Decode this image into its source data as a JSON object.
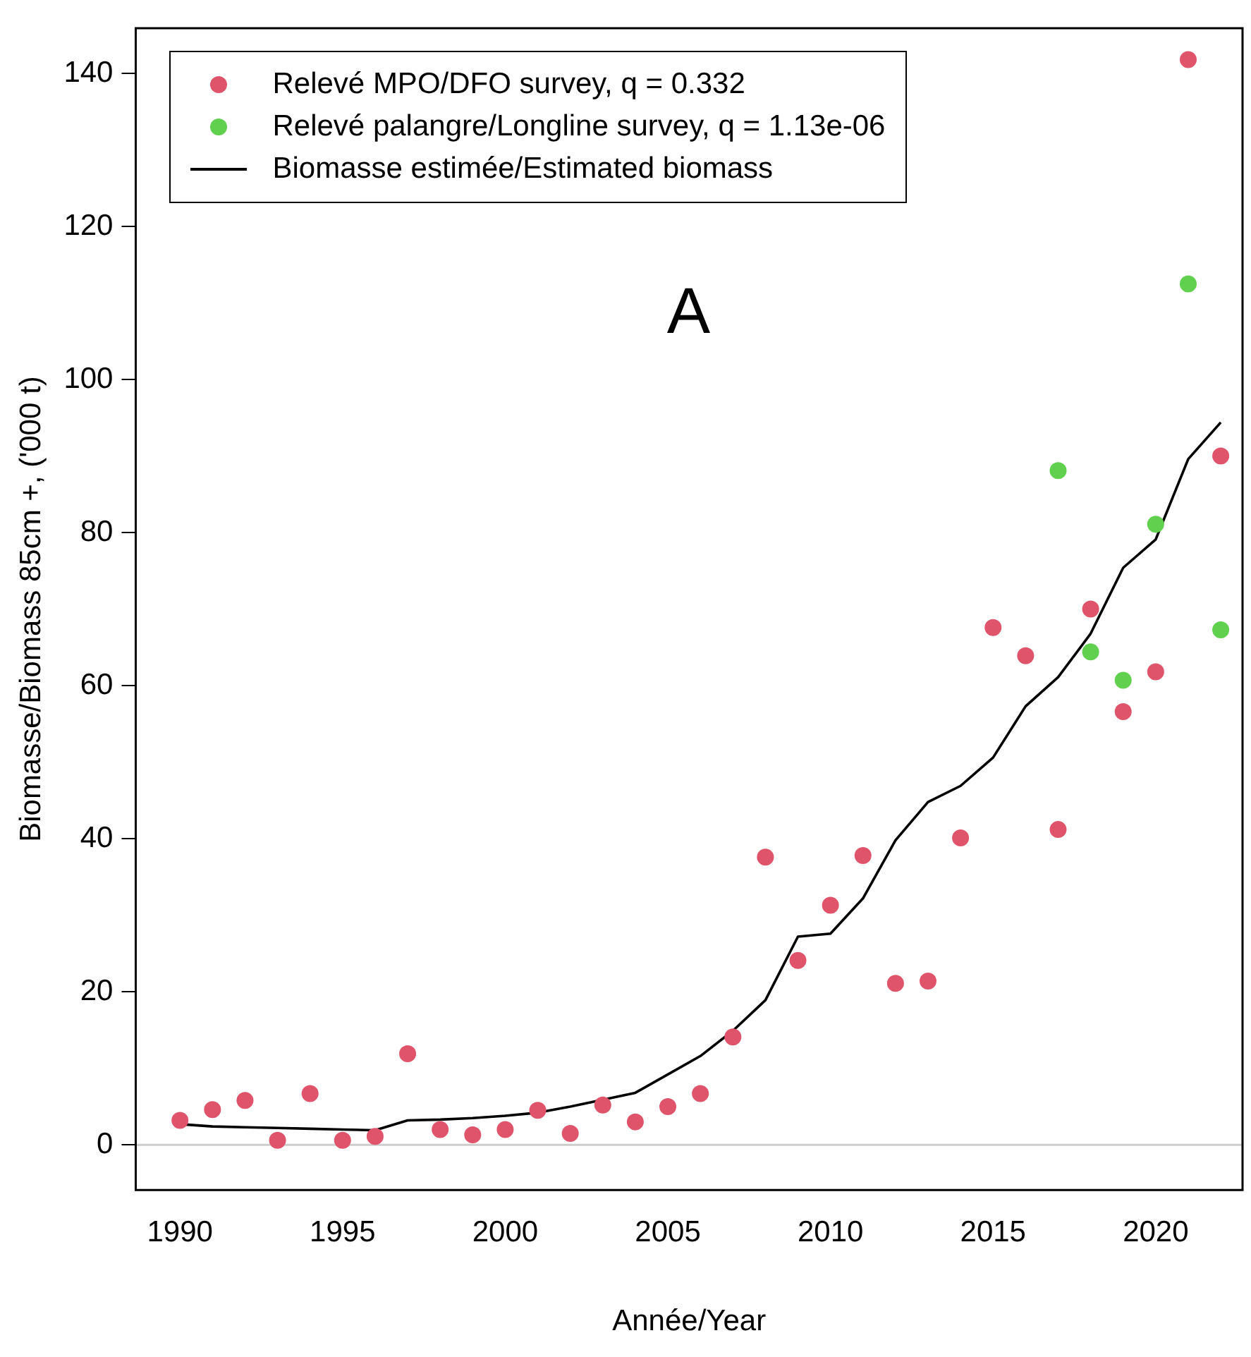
{
  "chart_data": {
    "type": "scatter",
    "xlabel": "Année/Year",
    "ylabel": "Biomasse/Biomass 85cm +, ('000 t)",
    "xlim": [
      1988.64,
      2022.67
    ],
    "xticks": [
      1990,
      1995,
      2000,
      2005,
      2010,
      2015,
      2020
    ],
    "ylim": [
      -5.9,
      145.9
    ],
    "yticks": [
      0,
      20,
      40,
      60,
      80,
      100,
      120,
      140
    ],
    "grid": false,
    "legend": "top left",
    "marker": "circle",
    "ref_lines": [
      {
        "axis": "y",
        "value": 0,
        "color": "#cccccc"
      }
    ],
    "annotations": [
      "A"
    ],
    "series": [
      {
        "name": "Relevé MPO/DFO survey, q = 0.332",
        "color": "#df536b",
        "x": [
          1990,
          1991,
          1992,
          1993,
          1994,
          1995,
          1996,
          1997,
          1998,
          1999,
          2000,
          2001,
          2002,
          2003,
          2004,
          2005,
          2006,
          2007,
          2008,
          2009,
          2010,
          2011,
          2012,
          2013,
          2014,
          2015,
          2016,
          2017,
          2018,
          2019,
          2020,
          2021,
          2022
        ],
        "values": [
          3.2,
          4.6,
          5.8,
          0.6,
          6.7,
          0.6,
          1.1,
          11.9,
          2.0,
          1.3,
          2.0,
          4.5,
          1.5,
          5.2,
          3.0,
          5.0,
          6.7,
          14.1,
          37.6,
          24.1,
          31.3,
          37.8,
          21.1,
          21.4,
          40.1,
          67.6,
          63.9,
          41.2,
          70.0,
          56.6,
          61.8,
          141.8,
          90.0
        ]
      },
      {
        "name": "Relevé palangre/Longline survey, q = 1.13e-06",
        "color": "#61d04f",
        "x": [
          2017,
          2018,
          2019,
          2020,
          2021,
          2022
        ],
        "values": [
          88.1,
          64.4,
          60.7,
          81.1,
          112.5,
          67.3
        ]
      },
      {
        "name": "Biomasse estimée/Estimated biomass",
        "type": "line",
        "marker": "none",
        "color": "#000000",
        "x": [
          1990,
          1991,
          1992,
          1993,
          1994,
          1995,
          1996,
          1997,
          1998,
          1999,
          2000,
          2001,
          2002,
          2003,
          2004,
          2005,
          2006,
          2007,
          2008,
          2009,
          2010,
          2011,
          2012,
          2013,
          2014,
          2015,
          2016,
          2017,
          2018,
          2019,
          2020,
          2021,
          2022
        ],
        "values": [
          2.7,
          2.4,
          2.3,
          2.2,
          2.1,
          2.0,
          1.9,
          3.2,
          3.3,
          3.5,
          3.8,
          4.2,
          5.0,
          5.9,
          6.8,
          9.2,
          11.6,
          14.9,
          18.9,
          27.2,
          27.6,
          32.2,
          39.8,
          44.8,
          46.9,
          50.6,
          57.3,
          61.1,
          66.8,
          75.4,
          79.1,
          89.6,
          94.4
        ]
      }
    ]
  }
}
